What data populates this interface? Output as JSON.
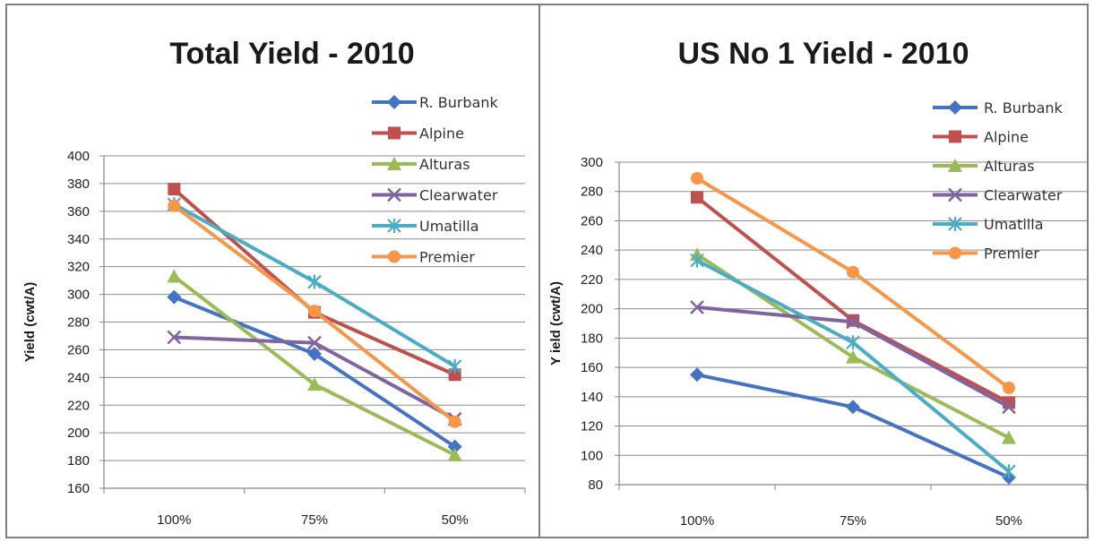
{
  "chart_data": [
    {
      "type": "line",
      "title": "Total Yield - 2010",
      "ylabel": "Yield (cwt/A)",
      "xlabel": "",
      "categories": [
        "100%",
        "75%",
        "50%"
      ],
      "ylim": [
        160,
        400
      ],
      "ytick_step": 20,
      "yticks": [
        "160",
        "180",
        "200",
        "220",
        "240",
        "260",
        "280",
        "300",
        "320",
        "340",
        "360",
        "380",
        "400"
      ],
      "grid": true,
      "legend": "top-right",
      "series": [
        {
          "name": "R. Burbank",
          "color": "#4472c4",
          "marker": "diamond",
          "values": [
            298,
            257,
            190
          ]
        },
        {
          "name": "Alpine",
          "color": "#c0504d",
          "marker": "square",
          "values": [
            376,
            287,
            242
          ]
        },
        {
          "name": "Alturas",
          "color": "#9bbb59",
          "marker": "triangle",
          "values": [
            313,
            235,
            184
          ]
        },
        {
          "name": "Clearwater",
          "color": "#8064a2",
          "marker": "x",
          "values": [
            269,
            265,
            210
          ]
        },
        {
          "name": "Umatilla",
          "color": "#4bacc6",
          "marker": "star",
          "values": [
            365,
            309,
            248
          ]
        },
        {
          "name": "Premier",
          "color": "#f79646",
          "marker": "circle",
          "values": [
            364,
            288,
            208
          ]
        }
      ]
    },
    {
      "type": "line",
      "title": "US No 1 Yield - 2010",
      "ylabel": "Y ield (cwt/A)",
      "xlabel": "",
      "categories": [
        "100%",
        "75%",
        "50%"
      ],
      "ylim": [
        80,
        300
      ],
      "ytick_step": 20,
      "yticks": [
        "80",
        "100",
        "120",
        "140",
        "160",
        "180",
        "200",
        "220",
        "240",
        "260",
        "280",
        "300"
      ],
      "grid": true,
      "legend": "top-right",
      "series": [
        {
          "name": "R. Burbank",
          "color": "#4472c4",
          "marker": "diamond",
          "values": [
            155,
            133,
            85
          ]
        },
        {
          "name": "Alpine",
          "color": "#c0504d",
          "marker": "square",
          "values": [
            276,
            192,
            136
          ]
        },
        {
          "name": "Alturas",
          "color": "#9bbb59",
          "marker": "triangle",
          "values": [
            237,
            167,
            112
          ]
        },
        {
          "name": "Clearwater",
          "color": "#8064a2",
          "marker": "x",
          "values": [
            201,
            191,
            133
          ]
        },
        {
          "name": "Umatilla",
          "color": "#4bacc6",
          "marker": "star",
          "values": [
            233,
            177,
            89
          ]
        },
        {
          "name": "Premier",
          "color": "#f79646",
          "marker": "circle",
          "values": [
            289,
            225,
            146
          ]
        }
      ]
    }
  ]
}
